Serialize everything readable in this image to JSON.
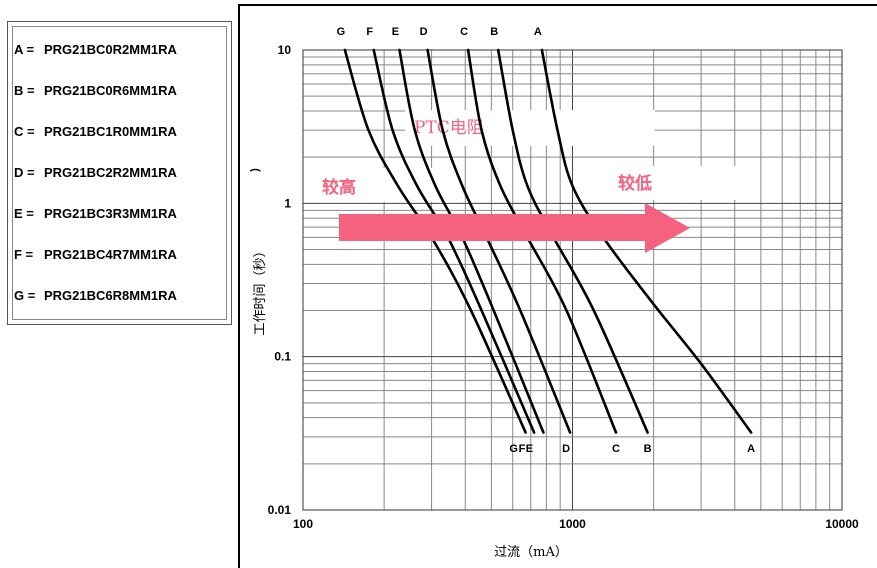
{
  "legend": {
    "items": [
      {
        "key": "A",
        "label": "A =",
        "part": "PRG21BC0R2MM1RA"
      },
      {
        "key": "B",
        "label": "B =",
        "part": "PRG21BC0R6MM1RA"
      },
      {
        "key": "C",
        "label": "C =",
        "part": "PRG21BC1R0MM1RA"
      },
      {
        "key": "D",
        "label": "D =",
        "part": "PRG21BC2R2MM1RA"
      },
      {
        "key": "E",
        "label": "E =",
        "part": "PRG21BC3R3MM1RA"
      },
      {
        "key": "F",
        "label": "F =",
        "part": "PRG21BC4R7MM1RA"
      },
      {
        "key": "G",
        "label": "G =",
        "part": "PRG21BC6R8MM1RA"
      }
    ]
  },
  "annotations": {
    "ptc": "PTC电阻",
    "higher": "较高",
    "lower": "较低",
    "arrow_color": "#f4627f"
  },
  "chart_data": {
    "type": "line",
    "xlabel": "过流（mA）",
    "ylabel": "工作时间（秒）",
    "x_scale": "log",
    "y_scale": "log",
    "xlim": [
      100,
      10000
    ],
    "ylim": [
      0.01,
      10
    ],
    "x_ticks": [
      "100",
      "1000",
      "10000"
    ],
    "y_ticks": [
      "10",
      "1",
      "0.1",
      "0.01"
    ],
    "grid": true,
    "series": [
      {
        "name": "A",
        "points": [
          [
            770,
            10
          ],
          [
            880,
            3
          ],
          [
            1000,
            1.3
          ],
          [
            1300,
            0.6
          ],
          [
            2000,
            0.22
          ],
          [
            3000,
            0.09
          ],
          [
            4600,
            0.032
          ]
        ]
      },
      {
        "name": "B",
        "points": [
          [
            530,
            10
          ],
          [
            600,
            3
          ],
          [
            680,
            1.3
          ],
          [
            850,
            0.6
          ],
          [
            1200,
            0.2
          ],
          [
            1900,
            0.032
          ]
        ]
      },
      {
        "name": "C",
        "points": [
          [
            410,
            10
          ],
          [
            460,
            3
          ],
          [
            540,
            1.3
          ],
          [
            680,
            0.6
          ],
          [
            950,
            0.2
          ],
          [
            1450,
            0.032
          ]
        ]
      },
      {
        "name": "D",
        "points": [
          [
            290,
            10
          ],
          [
            330,
            3
          ],
          [
            390,
            1.3
          ],
          [
            480,
            0.6
          ],
          [
            640,
            0.2
          ],
          [
            980,
            0.032
          ]
        ]
      },
      {
        "name": "E",
        "points": [
          [
            228,
            10
          ],
          [
            260,
            3
          ],
          [
            310,
            1.3
          ],
          [
            390,
            0.6
          ],
          [
            510,
            0.2
          ],
          [
            780,
            0.032
          ]
        ]
      },
      {
        "name": "F",
        "points": [
          [
            183,
            10
          ],
          [
            215,
            3
          ],
          [
            265,
            1.3
          ],
          [
            345,
            0.6
          ],
          [
            460,
            0.2
          ],
          [
            720,
            0.032
          ]
        ]
      },
      {
        "name": "G",
        "points": [
          [
            143,
            10
          ],
          [
            175,
            3
          ],
          [
            225,
            1.3
          ],
          [
            300,
            0.6
          ],
          [
            420,
            0.2
          ],
          [
            670,
            0.032
          ]
        ]
      }
    ],
    "top_labels": [
      "G",
      "F",
      "E",
      "D",
      "C",
      "B",
      "A"
    ],
    "bottom_labels": [
      "G",
      "F",
      "E",
      "D",
      "C",
      "B",
      "A"
    ]
  }
}
